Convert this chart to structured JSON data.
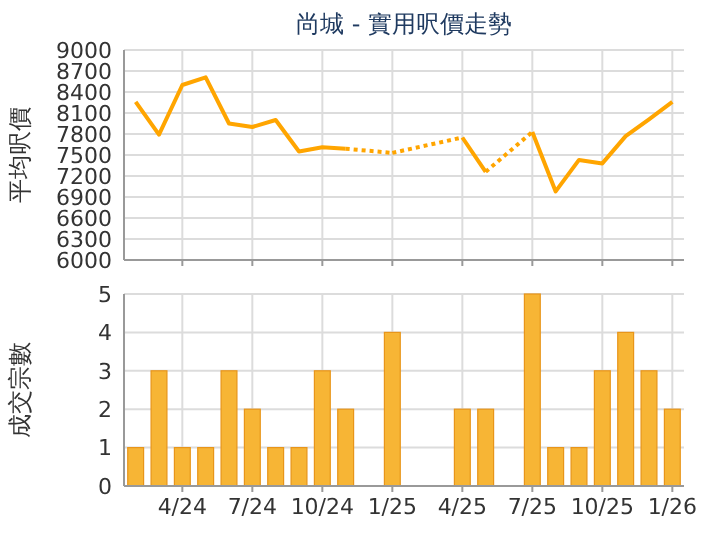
{
  "chart_data": [
    {
      "type": "line",
      "title": "尚城 - 實用呎價走勢",
      "ylabel": "平均呎價",
      "categories": [
        null,
        null,
        null,
        null,
        null,
        null,
        null,
        null,
        null,
        null,
        null,
        null,
        null,
        null,
        null,
        null,
        null,
        null,
        null,
        null,
        null,
        null,
        null,
        null
      ],
      "values": [
        8260,
        7790,
        8500,
        8610,
        7950,
        7900,
        8000,
        7550,
        7610,
        7590,
        null,
        7530,
        null,
        null,
        7750,
        7260,
        null,
        7830,
        6980,
        7430,
        7380,
        7770,
        8010,
        8260
      ],
      "color": "#ffa500",
      "ylim": [
        6000,
        9000
      ],
      "yticks": [
        6000,
        6300,
        6600,
        6900,
        7200,
        7500,
        7800,
        8100,
        8400,
        8700,
        9000
      ],
      "grid": true,
      "tick_labels": "y",
      "marker": "none"
    },
    {
      "type": "bar",
      "ylabel": "成交宗數",
      "categories": [
        null,
        null,
        "4/24",
        null,
        null,
        "7/24",
        null,
        null,
        "10/24",
        null,
        null,
        "1/25",
        null,
        null,
        "4/25",
        null,
        null,
        "7/25",
        null,
        null,
        "10/25",
        null,
        null,
        "1/26"
      ],
      "values": [
        1,
        3,
        1,
        1,
        3,
        2,
        1,
        1,
        3,
        2,
        0,
        4,
        0,
        0,
        2,
        2,
        0,
        5,
        1,
        1,
        3,
        4,
        3,
        2
      ],
      "color": "#f7b535",
      "ylim": [
        0,
        5
      ],
      "yticks": [
        0,
        1,
        2,
        3,
        4,
        5
      ],
      "grid": true
    }
  ]
}
